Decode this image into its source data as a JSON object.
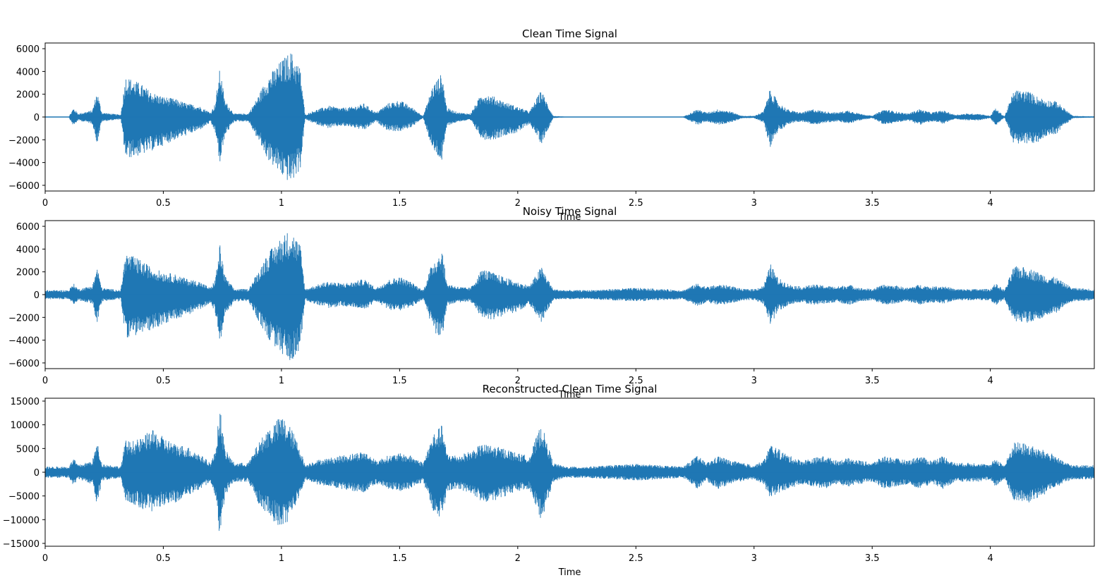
{
  "figure": {
    "line_color": "#1f77b4"
  },
  "chart_data": [
    {
      "type": "line",
      "title": "Clean Time Signal",
      "xlabel": "Time",
      "ylabel": "",
      "xlim": [
        0,
        4.44
      ],
      "ylim": [
        -6500,
        6500
      ],
      "xticks": [
        0,
        0.5,
        1,
        1.5,
        2,
        2.5,
        3,
        3.5,
        4
      ],
      "xtick_labels": [
        "0",
        "0.5",
        "1",
        "1.5",
        "2",
        "2.5",
        "3",
        "3.5",
        "4"
      ],
      "yticks": [
        -6000,
        -4000,
        -2000,
        0,
        2000,
        4000,
        6000
      ],
      "ytick_labels": [
        "−6000",
        "−4000",
        "−2000",
        "0",
        "2000",
        "4000",
        "6000"
      ],
      "grid": false,
      "series": [
        {
          "x": [
            0,
            0.1,
            0.12,
            0.14,
            0.2,
            0.22,
            0.24,
            0.32,
            0.34,
            0.36,
            0.4,
            0.45,
            0.5,
            0.55,
            0.6,
            0.65,
            0.7,
            0.72,
            0.74,
            0.76,
            0.8,
            0.86,
            0.9,
            0.94,
            1.0,
            1.04,
            1.08,
            1.1,
            1.14,
            1.2,
            1.25,
            1.3,
            1.35,
            1.4,
            1.45,
            1.5,
            1.55,
            1.6,
            1.64,
            1.68,
            1.7,
            1.75,
            1.8,
            1.85,
            1.9,
            1.95,
            2.0,
            2.05,
            2.1,
            2.15,
            2.2,
            2.3,
            2.5,
            2.7,
            2.76,
            2.8,
            2.85,
            2.9,
            2.95,
            3.0,
            3.04,
            3.07,
            3.1,
            3.15,
            3.2,
            3.25,
            3.3,
            3.35,
            3.4,
            3.45,
            3.5,
            3.55,
            3.6,
            3.65,
            3.7,
            3.75,
            3.8,
            3.85,
            3.9,
            3.95,
            4.0,
            4.02,
            4.06,
            4.1,
            4.16,
            4.2,
            4.24,
            4.28,
            4.3,
            4.35,
            4.44
          ],
          "upper": [
            30,
            30,
            800,
            300,
            600,
            2300,
            400,
            200,
            3600,
            3400,
            3000,
            2200,
            1800,
            1600,
            1200,
            1000,
            400,
            1200,
            4400,
            1500,
            300,
            300,
            1800,
            3500,
            5000,
            5800,
            4300,
            200,
            600,
            1000,
            800,
            900,
            1200,
            400,
            1200,
            1500,
            900,
            100,
            2800,
            3900,
            800,
            400,
            300,
            2200,
            1800,
            1300,
            900,
            500,
            2400,
            100,
            30,
            30,
            30,
            30,
            700,
            400,
            700,
            500,
            100,
            100,
            500,
            2600,
            1300,
            600,
            400,
            700,
            500,
            400,
            600,
            300,
            100,
            700,
            500,
            300,
            700,
            400,
            600,
            200,
            300,
            300,
            100,
            800,
            50,
            2400,
            2300,
            1800,
            1500,
            1400,
            1000,
            100,
            50
          ],
          "lower": [
            -30,
            -30,
            -800,
            -300,
            -600,
            -2400,
            -400,
            -200,
            -3700,
            -3600,
            -3400,
            -3000,
            -2500,
            -2000,
            -1600,
            -1200,
            -500,
            -1400,
            -4400,
            -1700,
            -400,
            -400,
            -2000,
            -3700,
            -5200,
            -5900,
            -4600,
            -200,
            -600,
            -1000,
            -800,
            -900,
            -1200,
            -400,
            -1200,
            -1300,
            -900,
            -100,
            -3000,
            -4000,
            -800,
            -400,
            -300,
            -2000,
            -2000,
            -1600,
            -1400,
            -600,
            -2400,
            -100,
            -30,
            -30,
            -30,
            -30,
            -700,
            -400,
            -700,
            -500,
            -100,
            -100,
            -500,
            -2700,
            -1300,
            -600,
            -400,
            -700,
            -500,
            -400,
            -600,
            -300,
            -100,
            -700,
            -500,
            -300,
            -700,
            -400,
            -600,
            -200,
            -300,
            -300,
            -100,
            -800,
            -50,
            -2400,
            -2400,
            -2300,
            -1600,
            -1500,
            -1000,
            -100,
            -50
          ]
        }
      ]
    },
    {
      "type": "line",
      "title": "Noisy Time Signal",
      "xlabel": "Time",
      "ylabel": "",
      "xlim": [
        0,
        4.44
      ],
      "ylim": [
        -6500,
        6500
      ],
      "xticks": [
        0,
        0.5,
        1,
        1.5,
        2,
        2.5,
        3,
        3.5,
        4
      ],
      "xtick_labels": [
        "0",
        "0.5",
        "1",
        "1.5",
        "2",
        "2.5",
        "3",
        "3.5",
        "4"
      ],
      "yticks": [
        -6000,
        -4000,
        -2000,
        0,
        2000,
        4000,
        6000
      ],
      "ytick_labels": [
        "−6000",
        "−4000",
        "−2000",
        "0",
        "2000",
        "4000",
        "6000"
      ],
      "grid": false,
      "series": [
        {
          "x": [
            0,
            0.1,
            0.12,
            0.14,
            0.2,
            0.22,
            0.24,
            0.32,
            0.34,
            0.36,
            0.4,
            0.45,
            0.5,
            0.55,
            0.6,
            0.65,
            0.7,
            0.72,
            0.74,
            0.76,
            0.8,
            0.86,
            0.9,
            0.94,
            1.0,
            1.04,
            1.08,
            1.1,
            1.14,
            1.2,
            1.25,
            1.3,
            1.35,
            1.4,
            1.45,
            1.5,
            1.55,
            1.6,
            1.64,
            1.68,
            1.7,
            1.75,
            1.8,
            1.85,
            1.9,
            1.95,
            2.0,
            2.05,
            2.1,
            2.15,
            2.2,
            2.3,
            2.5,
            2.7,
            2.76,
            2.8,
            2.85,
            2.9,
            2.95,
            3.0,
            3.04,
            3.07,
            3.1,
            3.15,
            3.2,
            3.25,
            3.3,
            3.35,
            3.4,
            3.45,
            3.5,
            3.55,
            3.6,
            3.65,
            3.7,
            3.75,
            3.8,
            3.85,
            3.9,
            3.95,
            4.0,
            4.02,
            4.06,
            4.1,
            4.16,
            4.2,
            4.24,
            4.28,
            4.3,
            4.35,
            4.44
          ],
          "upper": [
            400,
            400,
            1000,
            500,
            800,
            2500,
            600,
            400,
            3700,
            3500,
            3100,
            2400,
            2000,
            1800,
            1400,
            1200,
            600,
            1400,
            4500,
            1700,
            500,
            500,
            2000,
            3600,
            5100,
            5800,
            4400,
            500,
            800,
            1200,
            1000,
            1100,
            1400,
            600,
            1300,
            1600,
            1100,
            400,
            2900,
            4000,
            1000,
            700,
            600,
            2300,
            1900,
            1500,
            1100,
            800,
            2500,
            500,
            400,
            400,
            600,
            400,
            1000,
            700,
            900,
            800,
            500,
            500,
            800,
            2700,
            1500,
            900,
            700,
            900,
            800,
            700,
            900,
            600,
            500,
            900,
            800,
            600,
            900,
            700,
            800,
            500,
            500,
            500,
            500,
            1000,
            400,
            2500,
            2400,
            2000,
            1700,
            1500,
            1200,
            600,
            500
          ],
          "lower": [
            -400,
            -400,
            -1000,
            -500,
            -800,
            -2600,
            -600,
            -400,
            -3800,
            -3700,
            -3500,
            -3100,
            -2600,
            -2200,
            -1800,
            -1400,
            -700,
            -1600,
            -4600,
            -1900,
            -600,
            -600,
            -2200,
            -3800,
            -5300,
            -5900,
            -4700,
            -500,
            -800,
            -1200,
            -1000,
            -1100,
            -1400,
            -600,
            -1300,
            -1500,
            -1100,
            -400,
            -3100,
            -4100,
            -1000,
            -700,
            -600,
            -2100,
            -2200,
            -1800,
            -1500,
            -900,
            -2500,
            -500,
            -400,
            -400,
            -600,
            -400,
            -1000,
            -700,
            -900,
            -800,
            -500,
            -500,
            -800,
            -2800,
            -1500,
            -900,
            -700,
            -900,
            -800,
            -700,
            -900,
            -600,
            -500,
            -900,
            -800,
            -600,
            -900,
            -700,
            -800,
            -500,
            -500,
            -500,
            -500,
            -1000,
            -400,
            -2500,
            -2500,
            -2400,
            -1800,
            -1700,
            -1200,
            -600,
            -500
          ]
        }
      ]
    },
    {
      "type": "line",
      "title": "Reconstructed Clean Time Signal",
      "xlabel": "Time",
      "ylabel": "",
      "xlim": [
        0,
        4.44
      ],
      "ylim": [
        -15600,
        15600
      ],
      "xticks": [
        0,
        0.5,
        1,
        1.5,
        2,
        2.5,
        3,
        3.5,
        4
      ],
      "xtick_labels": [
        "0",
        "0.5",
        "1",
        "1.5",
        "2",
        "2.5",
        "3",
        "3.5",
        "4"
      ],
      "yticks": [
        -15000,
        -10000,
        -5000,
        0,
        5000,
        10000,
        15000
      ],
      "ytick_labels": [
        "−15000",
        "−10000",
        "−5000",
        "0",
        "5000",
        "10000",
        "15000"
      ],
      "grid": false,
      "series": [
        {
          "x": [
            0,
            0.1,
            0.12,
            0.14,
            0.2,
            0.22,
            0.24,
            0.32,
            0.34,
            0.36,
            0.4,
            0.45,
            0.5,
            0.55,
            0.6,
            0.65,
            0.7,
            0.72,
            0.74,
            0.76,
            0.8,
            0.86,
            0.9,
            0.94,
            1.0,
            1.04,
            1.08,
            1.1,
            1.14,
            1.2,
            1.25,
            1.3,
            1.35,
            1.4,
            1.45,
            1.5,
            1.55,
            1.6,
            1.64,
            1.68,
            1.7,
            1.75,
            1.8,
            1.85,
            1.9,
            1.95,
            2.0,
            2.05,
            2.1,
            2.15,
            2.2,
            2.3,
            2.5,
            2.7,
            2.76,
            2.8,
            2.85,
            2.9,
            2.95,
            3.0,
            3.04,
            3.07,
            3.1,
            3.15,
            3.2,
            3.25,
            3.3,
            3.35,
            3.4,
            3.45,
            3.5,
            3.55,
            3.6,
            3.65,
            3.7,
            3.75,
            3.8,
            3.85,
            3.9,
            3.95,
            4.0,
            4.02,
            4.06,
            4.1,
            4.16,
            4.2,
            4.24,
            4.28,
            4.3,
            4.35,
            4.44
          ],
          "upper": [
            1200,
            1200,
            3000,
            1500,
            2500,
            6500,
            1800,
            1200,
            6800,
            6500,
            7000,
            9000,
            7500,
            6000,
            5500,
            4000,
            2000,
            4500,
            14200,
            5000,
            2000,
            2000,
            6000,
            9000,
            12000,
            9500,
            5000,
            1500,
            2500,
            3000,
            3500,
            4000,
            4500,
            2500,
            3500,
            4000,
            3500,
            2000,
            8000,
            10000,
            4000,
            3500,
            4500,
            6000,
            5500,
            5000,
            4000,
            3500,
            10300,
            2000,
            1200,
            1200,
            1800,
            1200,
            3500,
            2000,
            3500,
            2500,
            2000,
            1500,
            2500,
            6000,
            5000,
            3500,
            2500,
            3000,
            3500,
            2500,
            3000,
            2500,
            2000,
            3500,
            3000,
            2500,
            3500,
            2500,
            3500,
            2000,
            2000,
            2000,
            1500,
            3000,
            1500,
            6500,
            6000,
            5000,
            4500,
            3500,
            2500,
            1500,
            1500
          ],
          "lower": [
            -1200,
            -1200,
            -3000,
            -1500,
            -2500,
            -7000,
            -1800,
            -1200,
            -6000,
            -6500,
            -7500,
            -8500,
            -7000,
            -6500,
            -5000,
            -4000,
            -2000,
            -5000,
            -14300,
            -5000,
            -2000,
            -2000,
            -6500,
            -9000,
            -12200,
            -9500,
            -5000,
            -1500,
            -2500,
            -3000,
            -3500,
            -4000,
            -4500,
            -2500,
            -3500,
            -4000,
            -3500,
            -2000,
            -8000,
            -10000,
            -4000,
            -3500,
            -4500,
            -6500,
            -6000,
            -5000,
            -4000,
            -3500,
            -10500,
            -2000,
            -1200,
            -1200,
            -1800,
            -1200,
            -3500,
            -2000,
            -3500,
            -2500,
            -2000,
            -1500,
            -2500,
            -5500,
            -4500,
            -3500,
            -2500,
            -3000,
            -3500,
            -2500,
            -3000,
            -2500,
            -2000,
            -3500,
            -3000,
            -2500,
            -3500,
            -2500,
            -3500,
            -2000,
            -2000,
            -2000,
            -1500,
            -3000,
            -1500,
            -6000,
            -7000,
            -5500,
            -4500,
            -3500,
            -2500,
            -1500,
            -1500
          ]
        }
      ]
    }
  ]
}
